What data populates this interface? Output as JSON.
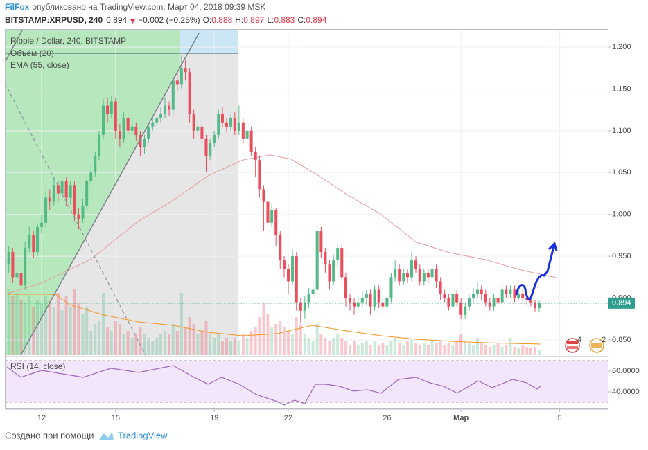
{
  "header": {
    "author": "FilFox",
    "published": "опубликовано на TradingView.com, Март 04, 2018 09:39 MSK",
    "symbol": "BITSTAMP:XRPUSD, 240",
    "price": "0.894",
    "change": "−0.002 (−0.25%)",
    "open_label": "O:",
    "open": "0.888",
    "high_label": "H:",
    "high": "0.897",
    "low_label": "L:",
    "low": "0.883",
    "close_label": "C:",
    "close": "0.894"
  },
  "event_badges": [
    "4",
    "2"
  ],
  "chart_data": [
    {
      "type": "candlestick",
      "title": "Ripple / Dollar, 240, BITSTAMP",
      "up_color": "#53b987",
      "down_color": "#eb4d5c",
      "xlim": [
        10.51,
        34.95
      ],
      "ylim": [
        0.8318,
        1.2215
      ],
      "yticks": [
        {
          "value": 0.85,
          "label": "0.850"
        },
        {
          "value": 0.9,
          "label": "0.900"
        },
        {
          "value": 0.95,
          "label": "0.950"
        },
        {
          "value": 1.0,
          "label": "1.000"
        },
        {
          "value": 1.05,
          "label": "1.050"
        },
        {
          "value": 1.1,
          "label": "1.100"
        },
        {
          "value": 1.15,
          "label": "1.150"
        },
        {
          "value": 1.2,
          "label": "1.200"
        }
      ],
      "grid": true,
      "last_price": {
        "value": 0.894,
        "label": "0.894",
        "color": "#2e9e8f"
      },
      "x": [
        10.67,
        10.83,
        11,
        11.17,
        11.33,
        11.5,
        11.67,
        11.83,
        12,
        12.17,
        12.33,
        12.5,
        12.67,
        12.83,
        13,
        13.17,
        13.33,
        13.5,
        13.67,
        13.83,
        14,
        14.17,
        14.33,
        14.5,
        14.67,
        14.83,
        15,
        15.17,
        15.33,
        15.5,
        15.67,
        15.83,
        16,
        16.17,
        16.33,
        16.5,
        16.67,
        16.83,
        17,
        17.17,
        17.33,
        17.5,
        17.67,
        17.83,
        18,
        18.17,
        18.33,
        18.5,
        18.67,
        18.83,
        19,
        19.17,
        19.33,
        19.5,
        19.67,
        19.83,
        20,
        20.17,
        20.33,
        20.5,
        20.67,
        20.83,
        21,
        21.17,
        21.33,
        21.5,
        21.67,
        21.83,
        22,
        22.17,
        22.33,
        22.5,
        22.67,
        22.83,
        23,
        23.17,
        23.33,
        23.5,
        23.67,
        23.83,
        24,
        24.17,
        24.33,
        24.5,
        24.67,
        24.83,
        25,
        25.17,
        25.33,
        25.5,
        25.67,
        25.83,
        26,
        26.17,
        26.33,
        26.5,
        26.67,
        26.83,
        27,
        27.17,
        27.33,
        27.5,
        27.67,
        27.83,
        28,
        28.17,
        28.33,
        28.5,
        28.67,
        28.83,
        29,
        29.17,
        29.33,
        29.5,
        29.67,
        29.83,
        30,
        30.17,
        30.33,
        30.5,
        30.67,
        30.83,
        31,
        31.17,
        31.33,
        31.5,
        31.67,
        31.83,
        32,
        32.17
      ],
      "open": [
        0.94,
        0.955,
        0.925,
        0.93,
        0.915,
        0.96,
        0.975,
        0.955,
        0.985,
        0.99,
        1.02,
        1.015,
        1.035,
        1.025,
        1.04,
        1.02,
        1.035,
        1.0,
        0.995,
        1.01,
        1.04,
        1.05,
        1.07,
        1.095,
        1.13,
        1.12,
        1.135,
        1.1,
        1.09,
        1.115,
        1.1,
        1.105,
        1.095,
        1.08,
        1.09,
        1.105,
        1.11,
        1.115,
        1.12,
        1.13,
        1.125,
        1.16,
        1.155,
        1.175,
        1.17,
        1.12,
        1.1,
        1.105,
        1.09,
        1.07,
        1.085,
        1.095,
        1.12,
        1.11,
        1.105,
        1.115,
        1.1,
        1.11,
        1.09,
        1.1,
        1.075,
        1.065,
        1.03,
        1.015,
        0.99,
        1.005,
        0.975,
        0.945,
        0.935,
        0.92,
        0.95,
        0.895,
        0.885,
        0.895,
        0.905,
        0.91,
        0.98,
        0.955,
        0.94,
        0.92,
        0.945,
        0.96,
        0.925,
        0.9,
        0.895,
        0.89,
        0.895,
        0.9,
        0.905,
        0.89,
        0.91,
        0.895,
        0.89,
        0.9,
        0.925,
        0.935,
        0.92,
        0.93,
        0.925,
        0.945,
        0.935,
        0.92,
        0.93,
        0.925,
        0.935,
        0.92,
        0.905,
        0.9,
        0.89,
        0.905,
        0.895,
        0.88,
        0.89,
        0.9,
        0.905,
        0.91,
        0.905,
        0.895,
        0.89,
        0.9,
        0.895,
        0.91,
        0.905,
        0.91,
        0.9,
        0.905,
        0.9,
        0.898,
        0.895,
        0.888
      ],
      "high": [
        0.962,
        0.96,
        0.94,
        0.935,
        0.968,
        0.985,
        0.98,
        0.99,
        1.0,
        1.028,
        1.03,
        1.045,
        1.04,
        1.05,
        1.045,
        1.04,
        1.04,
        1.008,
        1.018,
        1.045,
        1.06,
        1.075,
        1.1,
        1.138,
        1.14,
        1.142,
        1.14,
        1.108,
        1.122,
        1.12,
        1.112,
        1.11,
        1.1,
        1.095,
        1.11,
        1.118,
        1.12,
        1.128,
        1.14,
        1.135,
        1.165,
        1.17,
        1.19,
        1.185,
        1.175,
        1.125,
        1.112,
        1.11,
        1.095,
        1.09,
        1.1,
        1.125,
        1.128,
        1.115,
        1.12,
        1.122,
        1.13,
        1.115,
        1.105,
        1.105,
        1.08,
        1.07,
        1.035,
        1.02,
        1.012,
        1.008,
        0.98,
        0.95,
        0.94,
        0.958,
        0.955,
        0.9,
        0.902,
        0.912,
        0.918,
        0.985,
        0.985,
        0.96,
        0.945,
        0.952,
        0.965,
        0.965,
        0.93,
        0.905,
        0.9,
        0.902,
        0.908,
        0.91,
        0.91,
        0.915,
        0.915,
        0.9,
        0.905,
        0.93,
        0.945,
        0.94,
        0.935,
        0.935,
        0.955,
        0.95,
        0.94,
        0.935,
        0.935,
        0.945,
        0.94,
        0.925,
        0.91,
        0.905,
        0.91,
        0.91,
        0.9,
        0.895,
        0.905,
        0.912,
        0.918,
        0.915,
        0.91,
        0.9,
        0.905,
        0.905,
        0.915,
        0.915,
        0.915,
        0.915,
        0.912,
        0.91,
        0.905,
        0.902,
        0.898,
        0.897
      ],
      "low": [
        0.93,
        0.918,
        0.905,
        0.905,
        0.91,
        0.955,
        0.948,
        0.95,
        0.978,
        0.985,
        1.005,
        1.01,
        1.015,
        1.02,
        1.01,
        1.012,
        0.992,
        0.982,
        0.99,
        1.005,
        1.035,
        1.045,
        1.065,
        1.09,
        1.11,
        1.115,
        1.09,
        1.08,
        1.085,
        1.095,
        1.095,
        1.088,
        1.07,
        1.072,
        1.085,
        1.1,
        1.105,
        1.11,
        1.115,
        1.118,
        1.12,
        1.148,
        1.15,
        1.16,
        1.11,
        1.09,
        1.095,
        1.08,
        1.05,
        1.065,
        1.08,
        1.09,
        1.105,
        1.098,
        1.1,
        1.095,
        1.095,
        1.085,
        1.085,
        1.07,
        1.045,
        1.02,
        0.98,
        0.975,
        0.985,
        0.962,
        0.935,
        0.925,
        0.905,
        0.915,
        0.885,
        0.87,
        0.875,
        0.888,
        0.9,
        0.905,
        0.948,
        0.93,
        0.91,
        0.915,
        0.938,
        0.92,
        0.89,
        0.885,
        0.88,
        0.885,
        0.888,
        0.892,
        0.88,
        0.885,
        0.888,
        0.882,
        0.885,
        0.895,
        0.92,
        0.915,
        0.915,
        0.918,
        0.92,
        0.93,
        0.915,
        0.915,
        0.918,
        0.92,
        0.912,
        0.898,
        0.895,
        0.885,
        0.885,
        0.89,
        0.875,
        0.875,
        0.885,
        0.895,
        0.9,
        0.898,
        0.89,
        0.885,
        0.885,
        0.89,
        0.892,
        0.9,
        0.9,
        0.895,
        0.898,
        0.895,
        0.892,
        0.89,
        0.884,
        0.883
      ],
      "close": [
        0.955,
        0.925,
        0.93,
        0.915,
        0.96,
        0.975,
        0.955,
        0.985,
        0.99,
        1.02,
        1.015,
        1.035,
        1.025,
        1.04,
        1.02,
        1.035,
        1.0,
        0.995,
        1.01,
        1.04,
        1.05,
        1.07,
        1.095,
        1.13,
        1.12,
        1.135,
        1.1,
        1.09,
        1.115,
        1.1,
        1.105,
        1.095,
        1.08,
        1.09,
        1.105,
        1.11,
        1.115,
        1.12,
        1.13,
        1.125,
        1.16,
        1.155,
        1.175,
        1.17,
        1.12,
        1.1,
        1.105,
        1.09,
        1.07,
        1.085,
        1.095,
        1.12,
        1.11,
        1.105,
        1.115,
        1.1,
        1.11,
        1.09,
        1.1,
        1.075,
        1.065,
        1.03,
        1.015,
        0.99,
        1.005,
        0.975,
        0.945,
        0.935,
        0.92,
        0.95,
        0.895,
        0.885,
        0.895,
        0.905,
        0.91,
        0.98,
        0.955,
        0.94,
        0.92,
        0.945,
        0.96,
        0.925,
        0.9,
        0.895,
        0.89,
        0.895,
        0.9,
        0.905,
        0.89,
        0.91,
        0.895,
        0.89,
        0.9,
        0.925,
        0.935,
        0.92,
        0.93,
        0.925,
        0.945,
        0.935,
        0.92,
        0.93,
        0.925,
        0.935,
        0.92,
        0.905,
        0.9,
        0.89,
        0.905,
        0.895,
        0.88,
        0.89,
        0.9,
        0.905,
        0.91,
        0.905,
        0.895,
        0.89,
        0.9,
        0.895,
        0.91,
        0.905,
        0.91,
        0.9,
        0.905,
        0.9,
        0.898,
        0.895,
        0.888,
        0.894
      ],
      "volume": {
        "name": "Объём (20)",
        "ma_color": "#f7931e",
        "values": [
          95,
          85,
          90,
          80,
          75,
          85,
          70,
          80,
          75,
          85,
          80,
          70,
          90,
          65,
          85,
          70,
          95,
          75,
          60,
          70,
          35,
          45,
          50,
          90,
          40,
          35,
          50,
          45,
          30,
          35,
          25,
          30,
          40,
          30,
          25,
          20,
          25,
          30,
          35,
          30,
          45,
          35,
          90,
          40,
          55,
          45,
          30,
          35,
          50,
          30,
          25,
          30,
          20,
          25,
          20,
          25,
          20,
          30,
          25,
          35,
          40,
          55,
          75,
          60,
          40,
          45,
          50,
          40,
          35,
          30,
          55,
          45,
          30,
          25,
          20,
          45,
          30,
          25,
          20,
          25,
          30,
          25,
          20,
          15,
          20,
          15,
          18,
          20,
          15,
          20,
          15,
          18,
          15,
          20,
          25,
          18,
          15,
          20,
          22,
          18,
          15,
          18,
          15,
          20,
          18,
          20,
          15,
          18,
          15,
          20,
          30,
          20,
          18,
          15,
          25,
          18,
          15,
          12,
          15,
          18,
          12,
          15,
          25,
          12,
          10,
          15,
          12,
          10,
          12,
          8
        ],
        "ma_x": [
          10.6,
          12.56,
          13.12,
          14.53,
          15.93,
          17.34,
          18.74,
          20.15,
          21.55,
          22.96,
          24.36,
          25.76,
          27.17,
          28.57,
          29.98,
          32.22
        ],
        "ma_values": [
          88,
          88,
          73,
          58,
          48,
          43,
          33,
          28,
          31,
          43,
          35,
          28,
          23,
          20,
          18,
          16
        ]
      },
      "ema": {
        "name": "EMA (55, close)",
        "color": "#e79a9a",
        "x": [
          10.6,
          12,
          13.97,
          15.93,
          17.34,
          18.74,
          20.15,
          21.27,
          22.11,
          23.24,
          24.36,
          25.76,
          27.17,
          28.57,
          29.98,
          31.38,
          32.93
        ],
        "values": [
          0.905,
          0.918,
          0.946,
          0.992,
          1.017,
          1.046,
          1.065,
          1.071,
          1.066,
          1.046,
          1.024,
          1.0,
          0.967,
          0.954,
          0.946,
          0.934,
          0.924
        ]
      }
    },
    {
      "type": "line",
      "xlim": [
        10.51,
        34.95
      ],
      "ylim": [
        24,
        73.3
      ],
      "yticks": [
        {
          "value": 40,
          "label": "40.0000"
        },
        {
          "value": 60,
          "label": "60.0000"
        }
      ],
      "band": [
        30,
        70
      ],
      "band_color": "#f3e5fb",
      "xticks": [
        12,
        15,
        19,
        22,
        26,
        {
          "value": 29,
          "label": "Мар"
        },
        {
          "value": 33,
          "label": "5"
        }
      ],
      "series": [
        {
          "name": "RSI (14, close)",
          "color": "#a066c0",
          "x": [
            10.6,
            11.16,
            12,
            12.84,
            13.69,
            14.81,
            15.93,
            17.34,
            18.18,
            18.74,
            19.3,
            20.01,
            20.71,
            21.13,
            21.55,
            21.83,
            22.25,
            22.67,
            23.1,
            23.52,
            24.08,
            24.64,
            25.2,
            25.76,
            26.47,
            27.17,
            27.73,
            28.29,
            28.85,
            29.7,
            30.26,
            31.1,
            31.66,
            32.08,
            32.22
          ],
          "values": [
            64,
            54,
            60.7,
            57.3,
            54,
            62.7,
            58.7,
            65.3,
            54,
            47.3,
            54,
            47.3,
            37.3,
            34,
            30.7,
            27.3,
            32,
            28.7,
            47.3,
            47.3,
            45.3,
            40.7,
            42,
            38.7,
            52,
            54,
            48.7,
            45.3,
            38.7,
            50.7,
            44,
            52,
            48.7,
            42.7,
            45.3
          ]
        }
      ]
    }
  ],
  "footer": {
    "created_with": "Создано при помощи",
    "brand": "TradingView"
  }
}
